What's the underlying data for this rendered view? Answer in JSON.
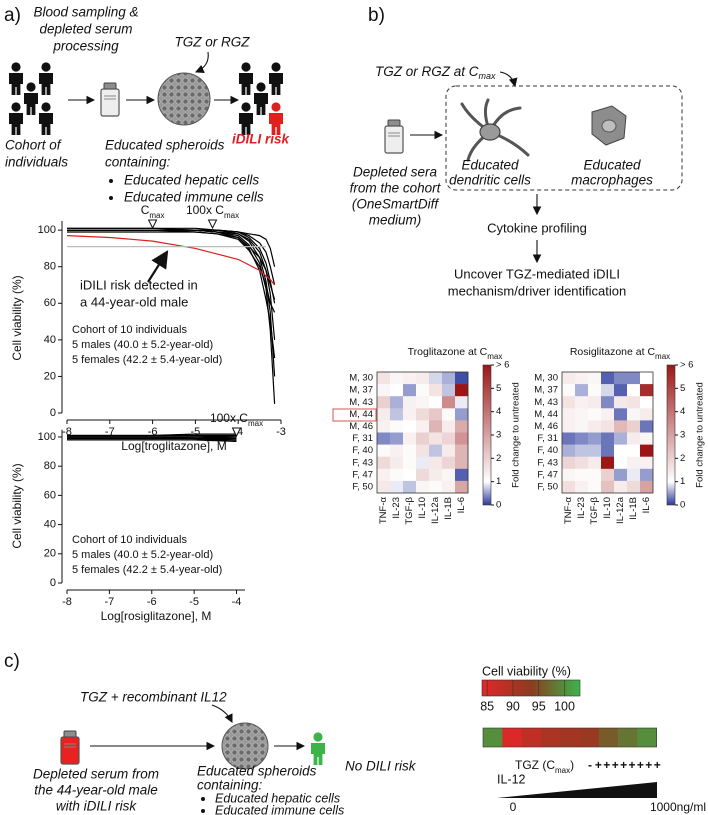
{
  "panel_a": {
    "label": "a)",
    "sampling": [
      "Blood sampling &",
      "depleted serum",
      "processing"
    ],
    "drug": "TGZ or RGZ",
    "cohort": [
      "Cohort of",
      "individuals"
    ],
    "spheroids": [
      "Educated spheroids",
      "containing:"
    ],
    "bullets": [
      "Educated hepatic cells",
      "Educated immune cells"
    ],
    "risk": "iDILI risk"
  },
  "panel_b": {
    "label": "b)",
    "drug": "TGZ or RGZ at C",
    "drug_sub": "max",
    "sera": [
      "Depleted sera",
      "from the cohort",
      "(OneSmartDiff",
      "medium)"
    ],
    "dendritic": [
      "Educated",
      "dendritic cells"
    ],
    "macrophages": [
      "Educated",
      "macrophages"
    ],
    "profiling": "Cytokine profiling",
    "outcome": [
      "Uncover TGZ-mediated iDILI",
      "mechanism/driver identification"
    ]
  },
  "panel_c": {
    "label": "c)",
    "treatment": "TGZ + recombinant IL12",
    "serum": [
      "Depleted serum from",
      "the 44-year-old male",
      "with iDILI risk"
    ],
    "spheroids": [
      "Educated spheroids",
      "containing:"
    ],
    "bullets": [
      "Educated hepatic cells",
      "Educated immune cells"
    ],
    "outcome": "No DILI risk"
  },
  "chart_data": [
    {
      "type": "line",
      "x": [
        -8,
        -7,
        -6,
        -5,
        -4.5,
        -4,
        -3.75,
        -3.5,
        -3.35,
        -3.25,
        -3.15
      ],
      "series": [
        {
          "color": "#000000",
          "values": [
            100,
            100,
            100,
            100,
            100,
            99,
            98,
            97,
            95,
            90,
            80
          ]
        },
        {
          "color": "#000000",
          "values": [
            100,
            100,
            100,
            100,
            100,
            99,
            97,
            93,
            88,
            80,
            70
          ]
        },
        {
          "color": "#000000",
          "values": [
            101,
            101,
            101,
            101,
            100,
            99,
            96,
            90,
            82,
            72,
            60
          ]
        },
        {
          "color": "#000000",
          "values": [
            100,
            100,
            100,
            100,
            99,
            98,
            95,
            88,
            78,
            65,
            40
          ]
        },
        {
          "color": "#000000",
          "values": [
            101,
            101,
            101,
            100,
            100,
            98,
            94,
            85,
            72,
            55,
            20
          ]
        },
        {
          "color": "#000000",
          "values": [
            100,
            100,
            100,
            100,
            99,
            97,
            92,
            82,
            68,
            45,
            5
          ]
        },
        {
          "color": "#000000",
          "values": [
            100,
            100,
            100,
            100,
            99,
            96,
            90,
            78,
            62,
            50,
            30
          ]
        },
        {
          "color": "#000000",
          "values": [
            99,
            99,
            99,
            99,
            98,
            96,
            91,
            85,
            78,
            70,
            62
          ]
        },
        {
          "color": "#000000",
          "values": [
            100,
            100,
            100,
            99,
            98,
            95,
            89,
            80,
            70,
            60,
            55
          ]
        },
        {
          "color": "#d62020",
          "values": [
            97,
            96,
            94,
            90,
            87,
            84,
            81,
            78,
            75,
            73,
            70
          ]
        },
        {
          "color": "#bbbbbb",
          "values": [
            91,
            91,
            91,
            91,
            91,
            91,
            91,
            91,
            91,
            null,
            null
          ]
        }
      ],
      "xlim": [
        -8,
        -3
      ],
      "xticks": [
        -8,
        -7,
        -6,
        -5,
        -4,
        -3
      ],
      "ylim": [
        0,
        105
      ],
      "yticks": [
        0,
        20,
        40,
        60,
        80,
        100
      ],
      "xlabel": "Log[troglitazone], M",
      "ylabel": "Cell viability (%)",
      "annotations": [
        {
          "text": "C",
          "sub": "max",
          "x": -6.0
        },
        {
          "text": "100x C",
          "sub": "max",
          "x": -4.6
        }
      ],
      "callout": [
        "iDILI risk detected in",
        "a 44-year-old male"
      ],
      "note": [
        "Cohort of 10 individuals",
        "5 males (40.0 ± 5.2-year-old)",
        "5 females (42.2 ± 5.4-year-old)"
      ]
    },
    {
      "type": "line",
      "x": [
        -8,
        -7,
        -6,
        -5,
        -4
      ],
      "series": [
        {
          "color": "#000000",
          "values": [
            100,
            100,
            100,
            100,
            100
          ]
        },
        {
          "color": "#000000",
          "values": [
            101,
            101,
            101,
            101,
            101
          ]
        },
        {
          "color": "#000000",
          "values": [
            99,
            99,
            99,
            99,
            98
          ]
        },
        {
          "color": "#000000",
          "values": [
            100,
            100,
            100,
            100,
            99
          ]
        },
        {
          "color": "#000000",
          "values": [
            101,
            101,
            101,
            102,
            102
          ]
        },
        {
          "color": "#000000",
          "values": [
            100,
            100,
            100,
            99,
            97
          ]
        },
        {
          "color": "#000000",
          "values": [
            99,
            99,
            99,
            99,
            99
          ]
        },
        {
          "color": "#000000",
          "values": [
            100,
            100,
            100,
            100,
            101
          ]
        },
        {
          "color": "#000000",
          "values": [
            98,
            98,
            98,
            98,
            97
          ]
        },
        {
          "color": "#000000",
          "values": [
            100,
            100,
            100,
            100,
            100
          ]
        }
      ],
      "xlim": [
        -8,
        -3.8
      ],
      "xticks": [
        -8,
        -7,
        -6,
        -5,
        -4
      ],
      "ylim": [
        0,
        105
      ],
      "yticks": [
        0,
        20,
        40,
        60,
        80,
        100
      ],
      "xlabel": "Log[rosiglitazone], M",
      "ylabel": "Cell viability (%)",
      "annotations": [
        {
          "text": "100x C",
          "sub": "max",
          "x": -4
        }
      ],
      "note": [
        "Cohort of 10 individuals",
        "5 males (40.0 ± 5.2-year-old)",
        "5 females (42.2 ± 5.4-year-old)"
      ]
    },
    {
      "type": "heatmap",
      "title": "Troglitazone at C",
      "title_sub": "max",
      "x": [
        "TNF-α",
        "IL-23",
        "TGF-β",
        "IL-10",
        "IL-12a",
        "IL-1B",
        "IL-6"
      ],
      "y": [
        "M, 30",
        "M, 37",
        "M, 43",
        "M, 44",
        "M, 46",
        "F, 31",
        "F, 40",
        "F, 43",
        "F, 47",
        "F, 50"
      ],
      "values": [
        [
          1.6,
          1.2,
          1.3,
          1.4,
          0.8,
          0.6,
          0.1
        ],
        [
          1.2,
          1.0,
          0.5,
          1.1,
          1.6,
          0.7,
          6
        ],
        [
          2.0,
          0.6,
          1.3,
          1.2,
          1.0,
          3.5,
          0.9
        ],
        [
          1.4,
          0.7,
          1.3,
          1.8,
          2.2,
          1.1,
          0.5
        ],
        [
          1.3,
          1.1,
          1.0,
          1.3,
          2.6,
          1.4,
          2.8
        ],
        [
          0.4,
          0.5,
          1.3,
          2.0,
          1.6,
          1.9,
          3.3
        ],
        [
          1.1,
          1.3,
          1.1,
          1.6,
          0.7,
          1.4,
          2.6
        ],
        [
          1.8,
          1.4,
          1.1,
          0.9,
          1.5,
          1.9,
          2.6
        ],
        [
          1.3,
          1.1,
          1.0,
          1.8,
          1.4,
          1.2,
          0.2
        ],
        [
          1.5,
          0.9,
          0.7,
          1.2,
          1.1,
          1.3,
          2.9
        ]
      ],
      "zlim": [
        0,
        6
      ],
      "zmid": 1,
      "colors": [
        "#2b3a9c",
        "#ffffff",
        "#9c1616"
      ],
      "cticks": [
        0,
        1,
        2,
        3,
        4,
        5,
        {
          "value": 6,
          "label": "> 6"
        }
      ],
      "clabel": "Fold change to untreated"
    },
    {
      "type": "heatmap",
      "title": "Rosiglitazone at C",
      "title_sub": "max",
      "x": [
        "TNF-α",
        "IL-23",
        "TGF-β",
        "IL-10",
        "IL-12a",
        "IL-1B",
        "IL-6"
      ],
      "y": [
        "M, 30",
        "M, 37",
        "M, 43",
        "M, 44",
        "M, 46",
        "F, 31",
        "F, 40",
        "F, 43",
        "F, 47",
        "F, 50"
      ],
      "values": [
        [
          1.4,
          1.3,
          1.2,
          0.2,
          0.4,
          0.4,
          1.0
        ],
        [
          1.1,
          0.6,
          1.1,
          0.8,
          0.2,
          1.0,
          5.5
        ],
        [
          1.6,
          1.3,
          1.4,
          0.4,
          1.5,
          1.6,
          1.0
        ],
        [
          1.3,
          1.2,
          1.1,
          1.3,
          0.3,
          1.2,
          1.4
        ],
        [
          1.3,
          1.2,
          1.4,
          1.6,
          2.5,
          2.0,
          0.3
        ],
        [
          0.3,
          0.4,
          0.5,
          0.3,
          0.6,
          1.4,
          1.2
        ],
        [
          0.6,
          0.7,
          0.7,
          0.3,
          1.0,
          1.0,
          6
        ],
        [
          1.9,
          1.7,
          1.4,
          6,
          1.0,
          1.3,
          1.3
        ],
        [
          1.2,
          1.1,
          1.1,
          2.0,
          0.5,
          0.9,
          0.5
        ],
        [
          1.7,
          1.3,
          1.1,
          2.3,
          1.4,
          1.8,
          3.0
        ]
      ],
      "zlim": [
        0,
        6
      ],
      "zmid": 1,
      "colors": [
        "#2b3a9c",
        "#ffffff",
        "#9c1616"
      ],
      "cticks": [
        0,
        1,
        2,
        3,
        4,
        5,
        {
          "value": 6,
          "label": "> 6"
        }
      ],
      "clabel": "Fold change to untreated"
    },
    {
      "type": "strip",
      "title": "Cell viability (%)",
      "values": [
        100,
        85,
        88,
        90,
        91,
        92,
        96,
        98,
        100
      ],
      "zlim": [
        84,
        103
      ],
      "ticks": [
        85,
        90,
        95,
        100
      ],
      "colors": [
        "#e4262a",
        "#8c3c1f",
        "#3bb44a"
      ],
      "tgz_label": [
        "TGZ (C",
        "max",
        ")"
      ],
      "signs": [
        "-",
        "+",
        "+",
        "+",
        "+",
        "+",
        "+",
        "+",
        "+"
      ],
      "il12_label": "IL-12",
      "il12_range": [
        "0",
        "1000ng/ml"
      ]
    }
  ]
}
